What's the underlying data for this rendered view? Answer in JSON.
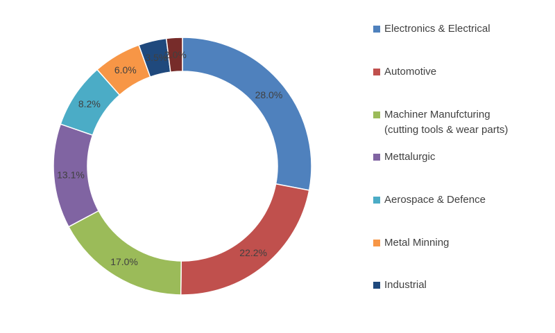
{
  "chart_data": {
    "type": "pie",
    "variant": "donut",
    "title": "",
    "legend_position": "right",
    "slices": [
      {
        "label": "Electronics & Electrical",
        "value": 28.0,
        "display": "28.0%",
        "color": "#4F81BD"
      },
      {
        "label": "Automotive",
        "value": 22.2,
        "display": "22.2%",
        "color": "#C0504D"
      },
      {
        "label": "Machiner Manufcturing\n(cutting tools & wear parts)",
        "value": 17.0,
        "display": "17.0%",
        "color": "#9BBB59"
      },
      {
        "label": "Mettalurgic",
        "value": 13.1,
        "display": "13.1%",
        "color": "#8064A2"
      },
      {
        "label": "Aerospace & Defence",
        "value": 8.2,
        "display": "8.2%",
        "color": "#4BACC6"
      },
      {
        "label": "Metal Minning",
        "value": 6.0,
        "display": "6.0%",
        "color": "#F79646"
      },
      {
        "label": "Industrial",
        "value": 3.5,
        "display": "3.5%",
        "color": "#1F497D"
      },
      {
        "label": "",
        "value": 2.0,
        "display": "2.0%",
        "color": "#772C2A"
      }
    ]
  }
}
